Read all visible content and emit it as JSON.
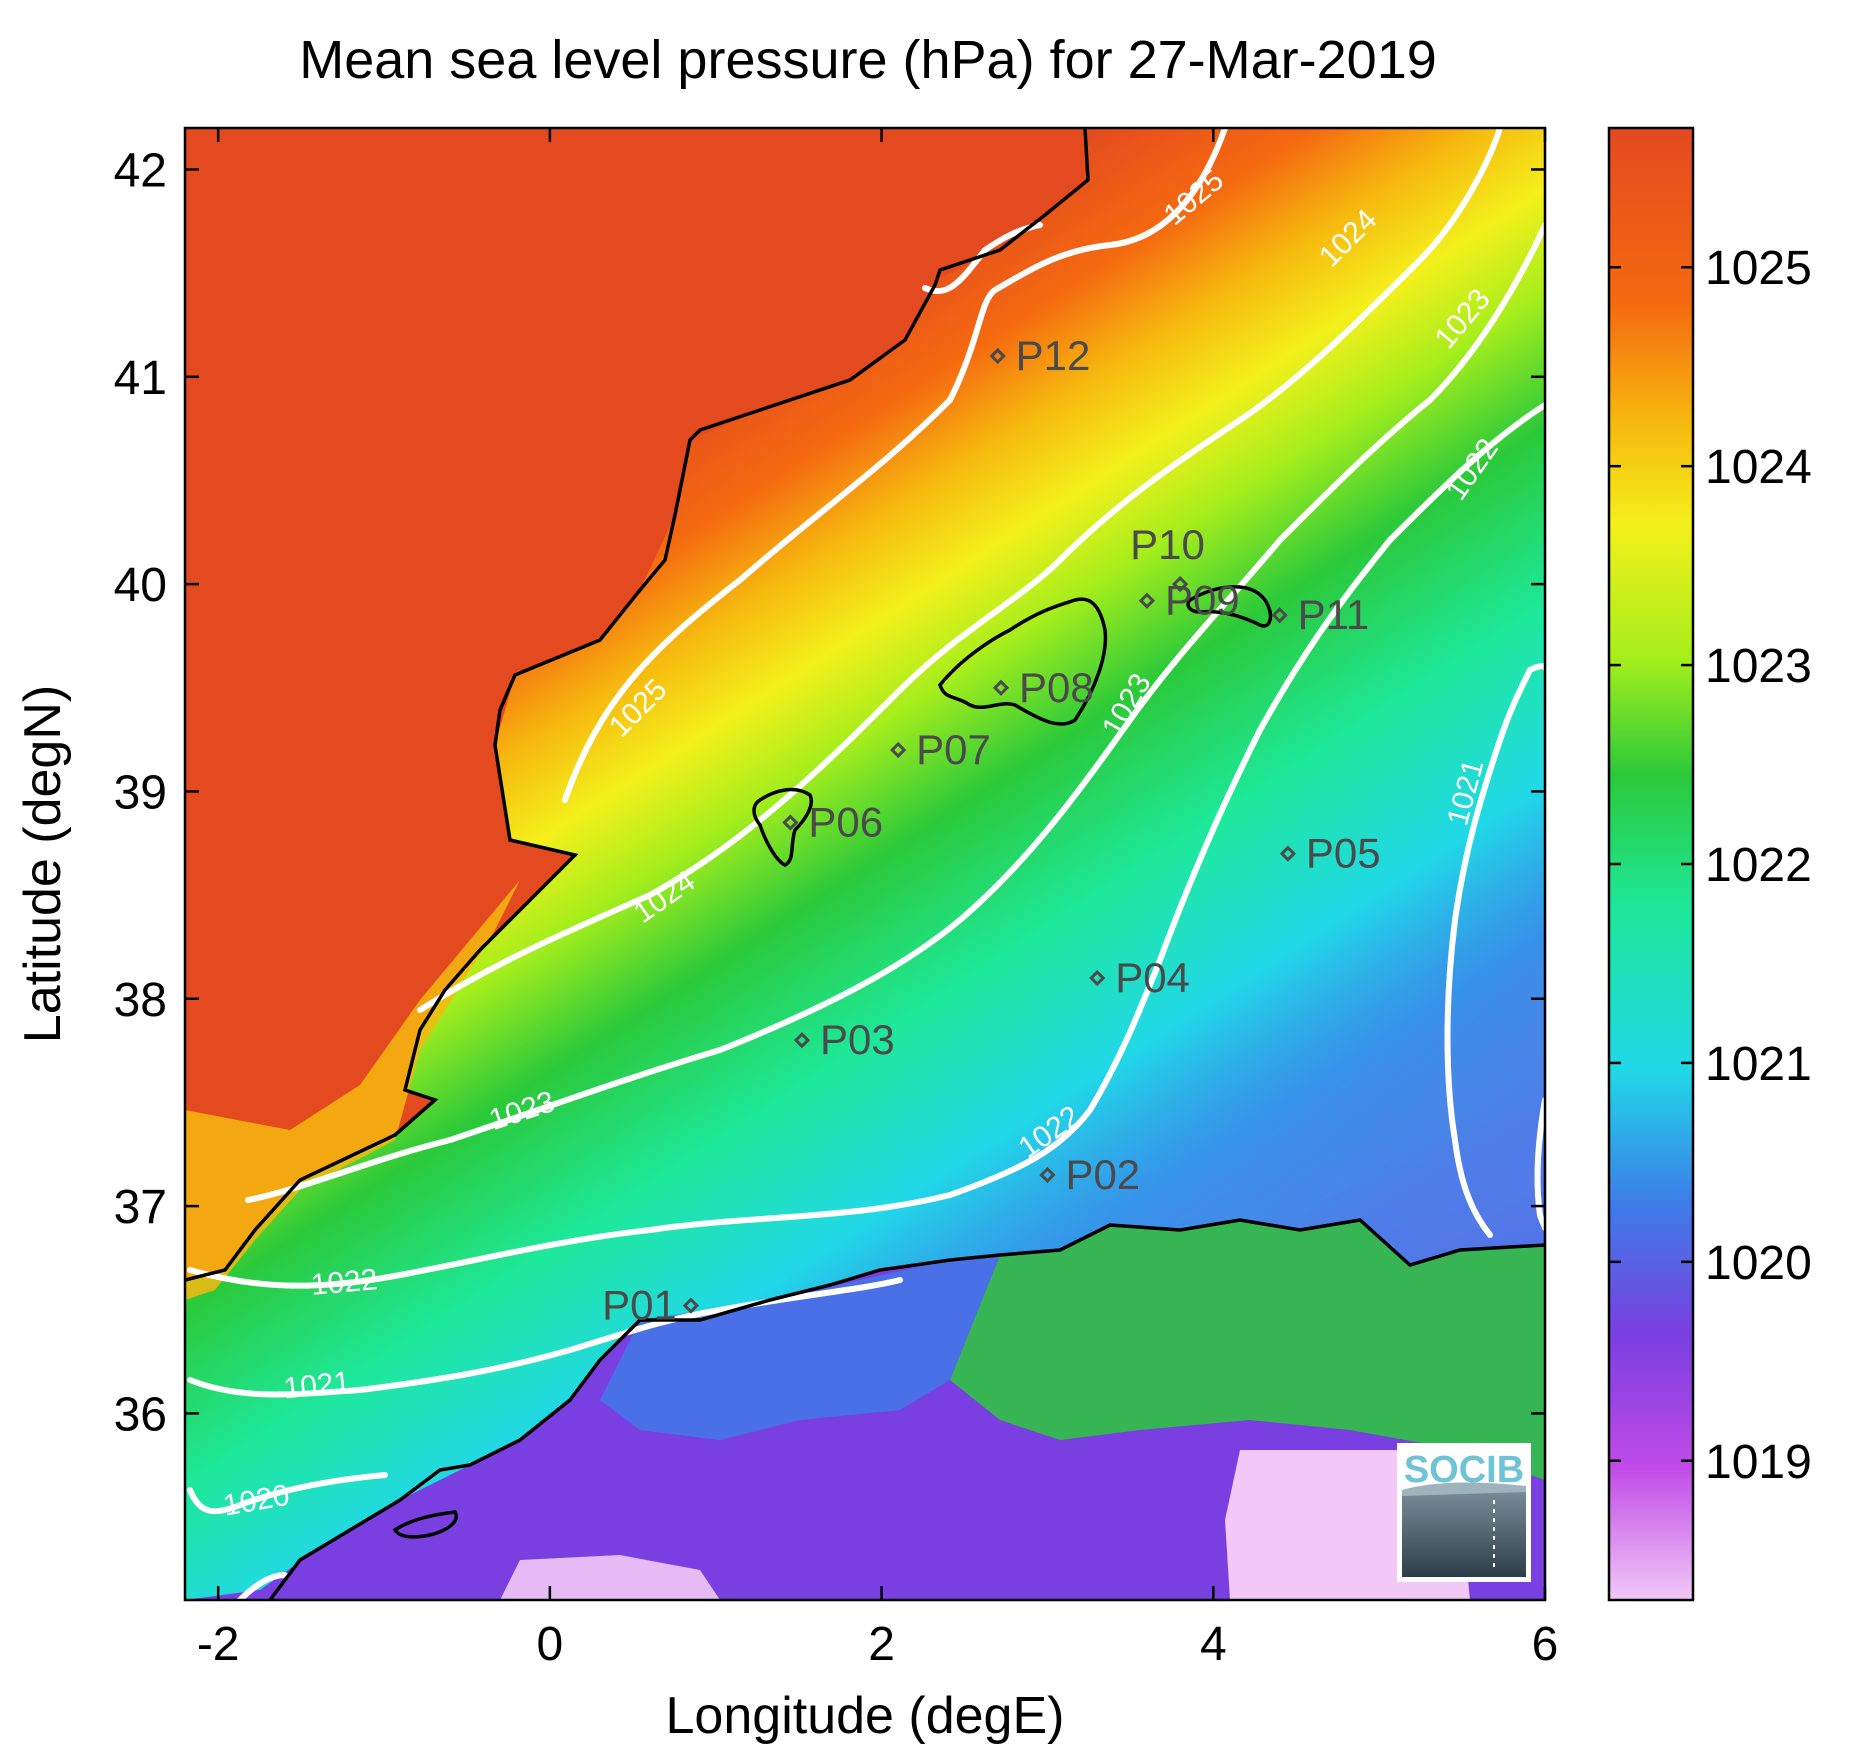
{
  "chart_data": {
    "type": "heatmap",
    "title": "Mean sea level pressure (hPa) for 27-Mar-2019",
    "xlabel": "Longitude (degE)",
    "ylabel": "Latitude (degN)",
    "xlim": [
      -2.2,
      6.0
    ],
    "ylim": [
      35.1,
      42.2
    ],
    "x_ticks": [
      -2,
      0,
      2,
      4,
      6
    ],
    "y_ticks": [
      36,
      37,
      38,
      39,
      40,
      41,
      42
    ],
    "x_tick_labels": [
      "-2",
      "0",
      "2",
      "4",
      "6"
    ],
    "y_tick_labels": [
      "36",
      "37",
      "38",
      "39",
      "40",
      "41",
      "42"
    ],
    "colorbar": {
      "min": 1018.3,
      "max": 1025.7,
      "ticks": [
        1019,
        1020,
        1021,
        1022,
        1023,
        1024,
        1025
      ],
      "tick_labels": [
        "1019",
        "1020",
        "1021",
        "1022",
        "1023",
        "1024",
        "1025"
      ],
      "colormap": [
        "#f2c8f7",
        "#c04be8",
        "#7a3fe0",
        "#3d7de8",
        "#21d8e8",
        "#1ee89a",
        "#2bc93a",
        "#a6ee1c",
        "#f4f01c",
        "#f6b80f",
        "#f56a10",
        "#e34a20"
      ]
    },
    "contours": [
      {
        "level": 1025,
        "label": "1025"
      },
      {
        "level": 1024,
        "label": "1024"
      },
      {
        "level": 1023,
        "label": "1023"
      },
      {
        "level": 1022,
        "label": "1022"
      },
      {
        "level": 1021,
        "label": "1021"
      },
      {
        "level": 1020,
        "label": "1020"
      }
    ],
    "stations": [
      {
        "name": "P01",
        "lon": 0.85,
        "lat": 36.52
      },
      {
        "name": "P02",
        "lon": 3.0,
        "lat": 37.15
      },
      {
        "name": "P03",
        "lon": 1.52,
        "lat": 37.8
      },
      {
        "name": "P04",
        "lon": 3.3,
        "lat": 38.1
      },
      {
        "name": "P05",
        "lon": 4.45,
        "lat": 38.7
      },
      {
        "name": "P06",
        "lon": 1.45,
        "lat": 38.85
      },
      {
        "name": "P07",
        "lon": 2.1,
        "lat": 39.2
      },
      {
        "name": "P08",
        "lon": 2.72,
        "lat": 39.5
      },
      {
        "name": "P09",
        "lon": 3.6,
        "lat": 39.92
      },
      {
        "name": "P10",
        "lon": 3.8,
        "lat": 40.0
      },
      {
        "name": "P11",
        "lon": 4.4,
        "lat": 39.85
      },
      {
        "name": "P12",
        "lon": 2.7,
        "lat": 41.1
      }
    ]
  },
  "logo": {
    "text": "SOCIB"
  }
}
